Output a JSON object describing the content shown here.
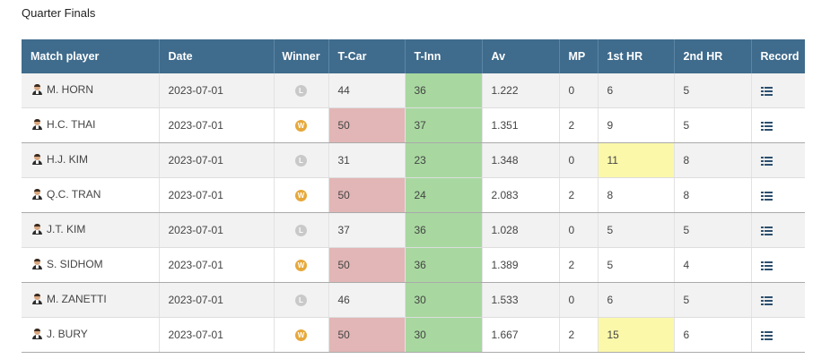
{
  "section_title": "Quarter Finals",
  "columns": {
    "player": "Match player",
    "date": "Date",
    "winner": "Winner",
    "tcar": "T-Car",
    "tinn": "T-Inn",
    "av": "Av",
    "mp": "MP",
    "hr1": "1st HR",
    "hr2": "2nd HR",
    "record": "Record"
  },
  "colors": {
    "header_bg": "#3f6b8c",
    "tcar_highlight": "#e2b6b6",
    "tinn_highlight": "#a8d8a0",
    "hr_highlight": "#fbf8aa",
    "win_badge": "#e7a83a",
    "loss_badge": "#c9c9c9"
  },
  "rows": [
    {
      "player": "M. HORN",
      "date": "2023-07-01",
      "winner": "L",
      "tcar": "44",
      "tinn": "36",
      "av": "1.222",
      "mp": "0",
      "hr1": "6",
      "hr2": "5"
    },
    {
      "player": "H.C. THAI",
      "date": "2023-07-01",
      "winner": "W",
      "tcar": "50",
      "tinn": "37",
      "av": "1.351",
      "mp": "2",
      "hr1": "9",
      "hr2": "5"
    },
    {
      "player": "H.J. KIM",
      "date": "2023-07-01",
      "winner": "L",
      "tcar": "31",
      "tinn": "23",
      "av": "1.348",
      "mp": "0",
      "hr1": "11",
      "hr2": "8"
    },
    {
      "player": "Q.C. TRAN",
      "date": "2023-07-01",
      "winner": "W",
      "tcar": "50",
      "tinn": "24",
      "av": "2.083",
      "mp": "2",
      "hr1": "8",
      "hr2": "8"
    },
    {
      "player": "J.T. KIM",
      "date": "2023-07-01",
      "winner": "L",
      "tcar": "37",
      "tinn": "36",
      "av": "1.028",
      "mp": "0",
      "hr1": "5",
      "hr2": "5"
    },
    {
      "player": "S. SIDHOM",
      "date": "2023-07-01",
      "winner": "W",
      "tcar": "50",
      "tinn": "36",
      "av": "1.389",
      "mp": "2",
      "hr1": "5",
      "hr2": "4"
    },
    {
      "player": "M. ZANETTI",
      "date": "2023-07-01",
      "winner": "L",
      "tcar": "46",
      "tinn": "30",
      "av": "1.533",
      "mp": "0",
      "hr1": "6",
      "hr2": "5"
    },
    {
      "player": "J. BURY",
      "date": "2023-07-01",
      "winner": "W",
      "tcar": "50",
      "tinn": "30",
      "av": "1.667",
      "mp": "2",
      "hr1": "15",
      "hr2": "6"
    }
  ]
}
